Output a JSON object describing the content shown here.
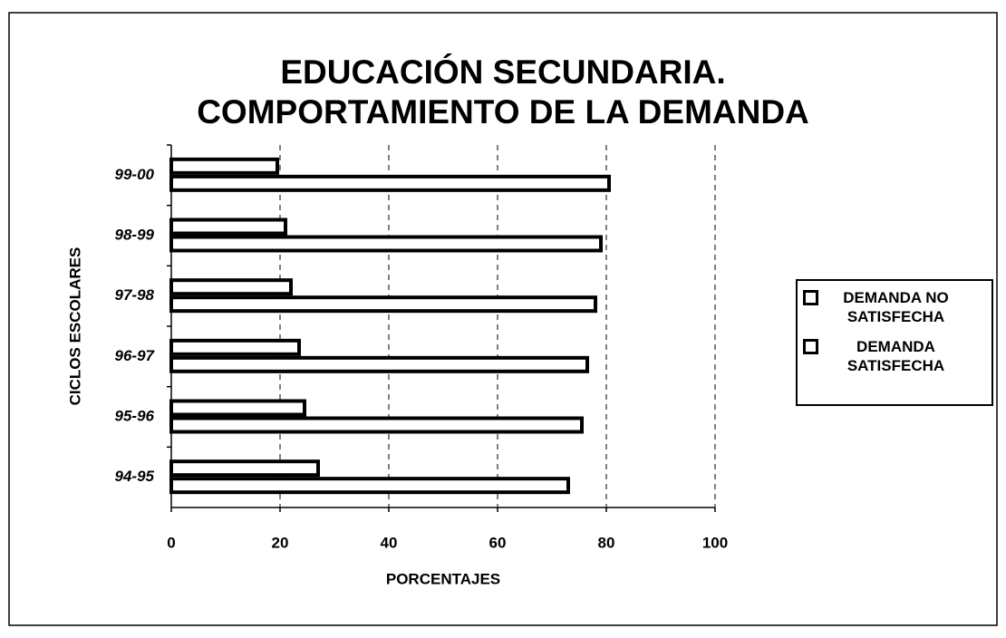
{
  "chart_data": {
    "type": "barh",
    "title": "EDUCACIÓN SECUNDARIA. COMPORTAMIENTO DE LA DEMANDA",
    "xlabel": "PORCENTAJES",
    "ylabel": "CICLOS ESCOLARES",
    "categories": [
      "99-00",
      "98-99",
      "97-98",
      "96-97",
      "95-96",
      "94-95"
    ],
    "series": [
      {
        "name": "DEMANDA NO SATISFECHA",
        "color": "#ffffff",
        "values": [
          19.5,
          21,
          22,
          23.5,
          24.5,
          27
        ]
      },
      {
        "name": "DEMANDA SATISFECHA",
        "color": "#ffffff",
        "values": [
          80.5,
          79,
          78,
          76.5,
          75.5,
          73
        ]
      }
    ],
    "xlim": [
      0,
      100
    ],
    "xticks": [
      0,
      20,
      40,
      60,
      80,
      100
    ],
    "grid": true
  }
}
